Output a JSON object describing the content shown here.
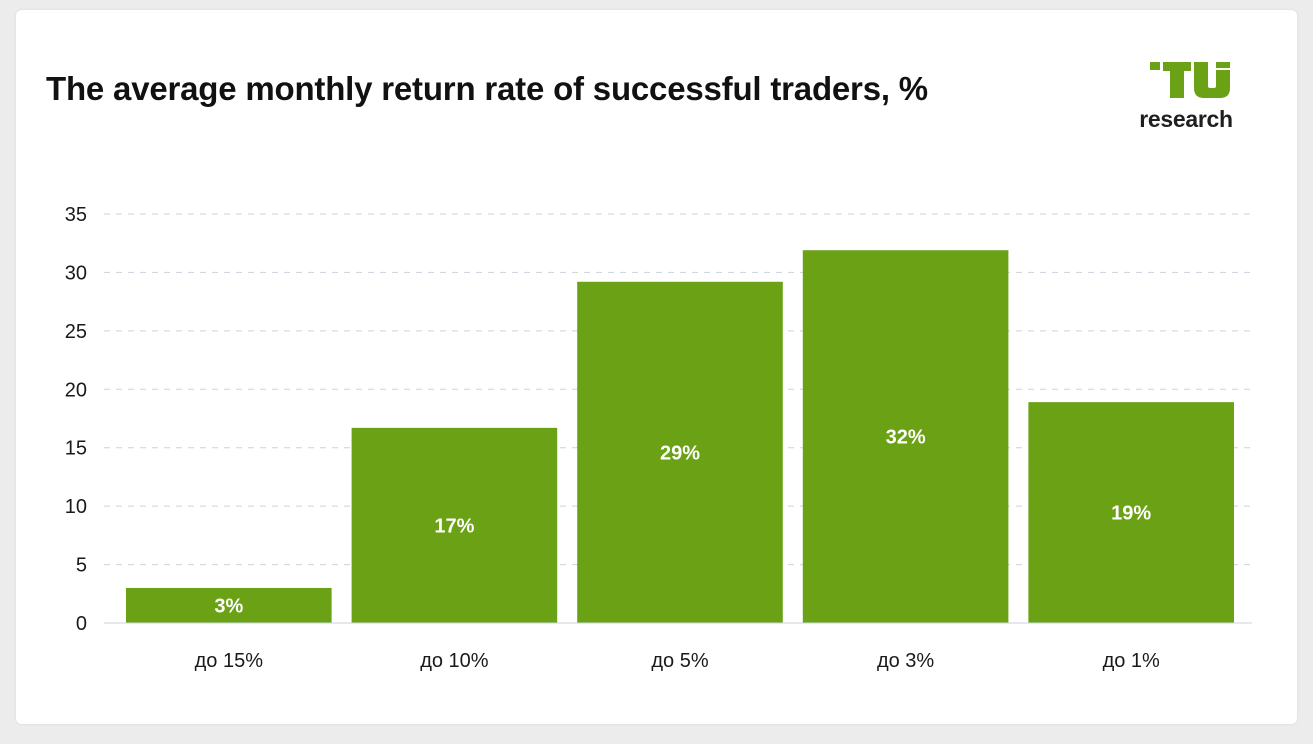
{
  "header": {
    "title": "The average monthly return rate of successful traders, %"
  },
  "logo": {
    "mark": "TU",
    "text": "research",
    "color": "#6aa115"
  },
  "chart_data": {
    "type": "bar",
    "title": "The average monthly return rate of successful traders, %",
    "categories": [
      "до 15%",
      "до 10%",
      "до 5%",
      "до 3%",
      "до 1%"
    ],
    "values": [
      3,
      17,
      29,
      32,
      19
    ],
    "data_labels": [
      "3%",
      "17%",
      "29%",
      "32%",
      "19%"
    ],
    "plot_values": [
      3,
      16.7,
      29.2,
      31.9,
      18.9
    ],
    "ylim": [
      0,
      35
    ],
    "yticks": [
      0,
      5,
      10,
      15,
      20,
      25,
      30,
      35
    ],
    "grid": true,
    "legend": "none",
    "bar_color": "#6aa115",
    "xlabel": "",
    "ylabel": ""
  }
}
